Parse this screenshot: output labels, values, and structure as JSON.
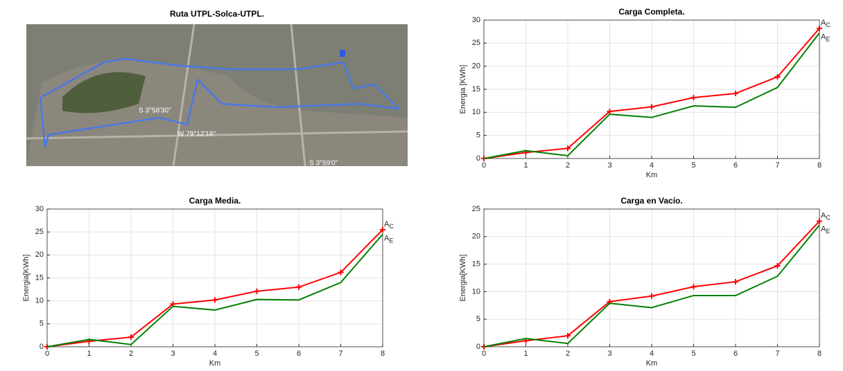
{
  "map": {
    "title": "Ruta UTPL-Solca-UTPL.",
    "labels": [
      "S 3°58'30\"",
      "W 79°12'18\"",
      "S 3°59'0\""
    ]
  },
  "chart_data": [
    {
      "type": "line",
      "title": "Carga Completa.",
      "xlabel": "Km",
      "ylabel": "Energia [KWh]",
      "x": [
        0,
        1,
        2,
        3,
        4,
        5,
        6,
        7,
        8
      ],
      "xlim": [
        0,
        8
      ],
      "xticks": [
        0,
        1,
        2,
        3,
        4,
        5,
        6,
        7,
        8
      ],
      "ylim": [
        0,
        30
      ],
      "yticks": [
        0,
        5,
        10,
        15,
        20,
        25,
        30
      ],
      "grid": true,
      "series": [
        {
          "label": {
            "text": "A",
            "sub": "C"
          },
          "color": "#ff0000",
          "marker": "+",
          "values": [
            0,
            1.3,
            2.2,
            10.2,
            11.2,
            13.2,
            14.1,
            17.7,
            28.2
          ]
        },
        {
          "label": {
            "text": "A",
            "sub": "E"
          },
          "color": "#008000",
          "values": [
            0,
            1.7,
            0.6,
            9.6,
            8.9,
            11.4,
            11.1,
            15.4,
            27.2
          ]
        }
      ]
    },
    {
      "type": "line",
      "title": "Carga Media.",
      "xlabel": "Km",
      "ylabel": "Energia[KWh]",
      "x": [
        0,
        1,
        2,
        3,
        4,
        5,
        6,
        7,
        8
      ],
      "xlim": [
        0,
        8
      ],
      "xticks": [
        0,
        1,
        2,
        3,
        4,
        5,
        6,
        7,
        8
      ],
      "ylim": [
        0,
        30
      ],
      "yticks": [
        0,
        5,
        10,
        15,
        20,
        25,
        30
      ],
      "grid": true,
      "series": [
        {
          "label": {
            "text": "A",
            "sub": "C"
          },
          "color": "#ff0000",
          "marker": "+",
          "values": [
            0,
            1.2,
            2.1,
            9.3,
            10.2,
            12.1,
            13.0,
            16.2,
            25.5
          ]
        },
        {
          "label": {
            "text": "A",
            "sub": "E"
          },
          "color": "#008000",
          "values": [
            0,
            1.6,
            0.5,
            8.8,
            8.0,
            10.3,
            10.2,
            14.0,
            24.5
          ]
        }
      ]
    },
    {
      "type": "line",
      "title": "Carga en Vacío.",
      "xlabel": "Km",
      "ylabel": "Energia[KWh]",
      "x": [
        0,
        1,
        2,
        3,
        4,
        5,
        6,
        7,
        8
      ],
      "xlim": [
        0,
        8
      ],
      "xticks": [
        0,
        1,
        2,
        3,
        4,
        5,
        6,
        7,
        8
      ],
      "ylim": [
        0,
        25
      ],
      "yticks": [
        0,
        5,
        10,
        15,
        20,
        25
      ],
      "grid": true,
      "series": [
        {
          "label": {
            "text": "A",
            "sub": "C"
          },
          "color": "#ff0000",
          "marker": "+",
          "values": [
            0,
            1.1,
            2.0,
            8.2,
            9.2,
            10.9,
            11.8,
            14.7,
            22.8
          ]
        },
        {
          "label": {
            "text": "A",
            "sub": "E"
          },
          "color": "#008000",
          "values": [
            0,
            1.5,
            0.6,
            7.9,
            7.1,
            9.3,
            9.3,
            12.8,
            22.1
          ]
        }
      ]
    }
  ]
}
